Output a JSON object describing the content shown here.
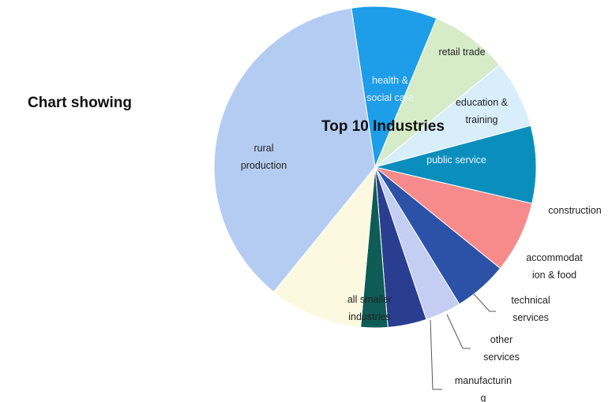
{
  "side_title": "Chart showing",
  "chart_data": {
    "type": "pie",
    "title": "Top 10 Industries",
    "slices": [
      {
        "label": "health & social care",
        "lines": [
          "health &",
          "social care"
        ],
        "value": 8.6,
        "color": "#1e9de8"
      },
      {
        "label": "retail trade",
        "lines": [
          "retail trade"
        ],
        "value": 7.8,
        "color": "#d6ecc8"
      },
      {
        "label": "education & training",
        "lines": [
          "education &",
          "training"
        ],
        "value": 6.8,
        "color": "#d8eefa"
      },
      {
        "label": "public service",
        "lines": [
          "public service"
        ],
        "value": 7.8,
        "color": "#0a8fbd"
      },
      {
        "label": "construction",
        "lines": [
          "construction"
        ],
        "value": 7.2,
        "color": "#f78a8a"
      },
      {
        "label": "accommodation & food",
        "lines": [
          "accommodat",
          "ion & food"
        ],
        "value": 5.4,
        "color": "#2c52a8"
      },
      {
        "label": "technical services",
        "lines": [
          "technical",
          "services"
        ],
        "value": 3.6,
        "color": "#c4cdf2"
      },
      {
        "label": "other services",
        "lines": [
          "other",
          "services"
        ],
        "value": 3.9,
        "color": "#2a3e90"
      },
      {
        "label": "manufacturing",
        "lines": [
          "manufacturin",
          "g"
        ],
        "value": 2.7,
        "color": "#0e5c55"
      },
      {
        "label": "all smaller industries",
        "lines": [
          "all smaller",
          "industries"
        ],
        "value": 9.4,
        "color": "#fdf9e0"
      },
      {
        "label": "rural production",
        "lines": [
          "rural",
          "production"
        ],
        "value": 36.8,
        "color": "#b5ccf2"
      }
    ],
    "legend": "none"
  }
}
